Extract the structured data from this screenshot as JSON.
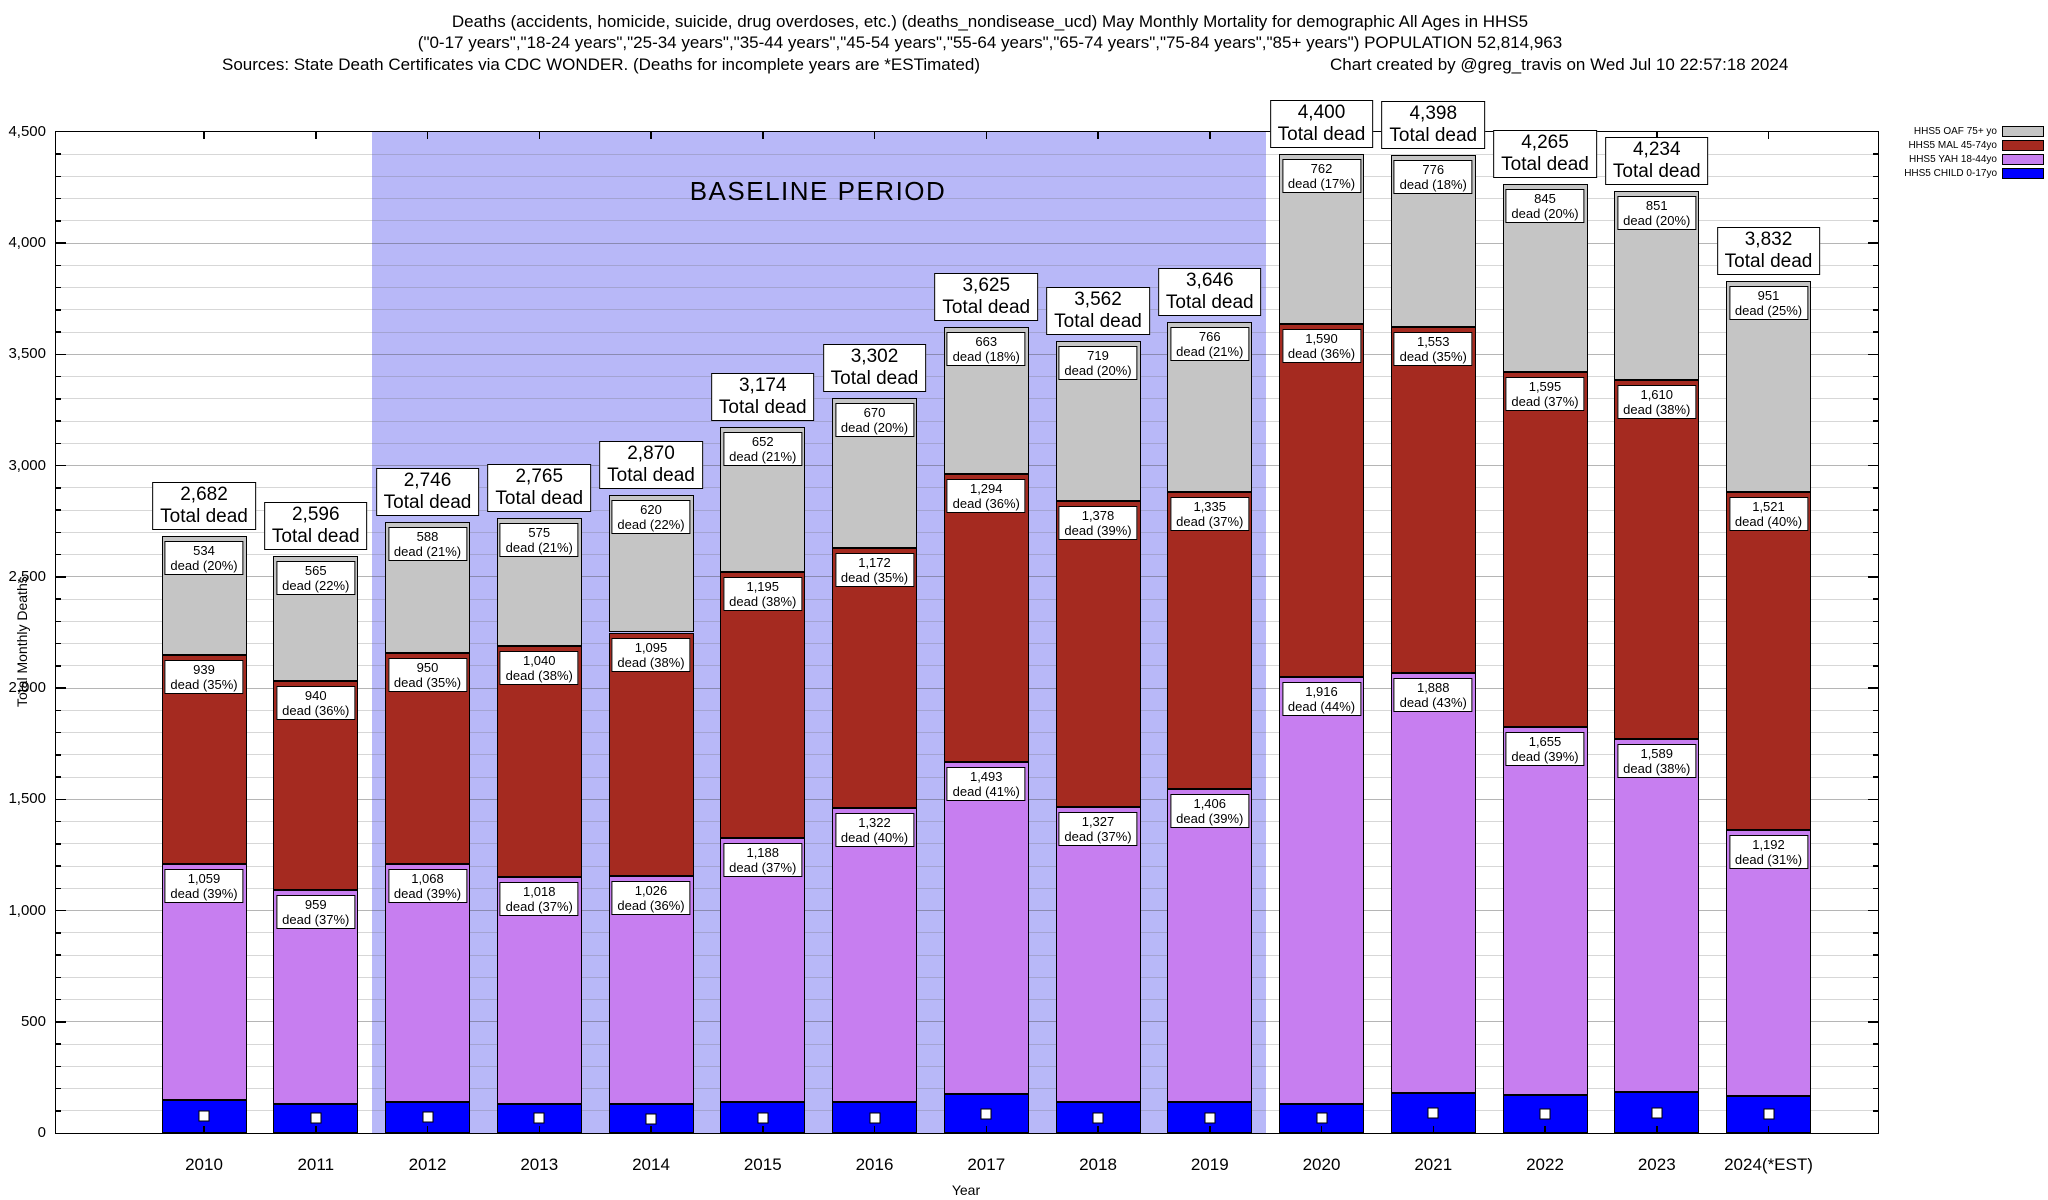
{
  "header": {
    "title_line1": "Deaths (accidents, homicide, suicide, drug overdoses, etc.) (deaths_nondisease_ucd) May Monthly Mortality for demographic All Ages in HHS5",
    "title_line2": "(\"0-17 years\",\"18-24 years\",\"25-34 years\",\"35-44 years\",\"45-54 years\",\"55-64 years\",\"65-74 years\",\"75-84 years\",\"85+ years\") POPULATION 52,814,963",
    "sources": "Sources: State Death Certificates via CDC WONDER. (Deaths for incomplete years are *ESTimated)",
    "credit": "Chart created by @greg_travis on Wed Jul 10 22:57:18 2024"
  },
  "chart_data": {
    "type": "bar",
    "stacked": true,
    "title": "Deaths (accidents, homicide, suicide, drug overdoses, etc.) May Monthly Mortality for demographic All Ages in HHS5",
    "xlabel": "Year",
    "ylabel": "Total Monthly Deaths",
    "ylim": [
      0,
      4500
    ],
    "y_tick_step": 500,
    "y_minor_step": 100,
    "grid": true,
    "legend_position": "top-right-outside",
    "categories": [
      "2010",
      "2011",
      "2012",
      "2013",
      "2014",
      "2015",
      "2016",
      "2017",
      "2018",
      "2019",
      "2020",
      "2021",
      "2022",
      "2023",
      "2024(*EST)"
    ],
    "totals": [
      2682,
      2596,
      2746,
      2765,
      2870,
      3174,
      3302,
      3625,
      3562,
      3646,
      4400,
      4398,
      4265,
      4234,
      3832
    ],
    "total_label_text": "Total dead",
    "segment_label_prefix": "dead",
    "series": [
      {
        "name": "HHS5 CHILD 0-17yo",
        "short": "child",
        "color": "#0000ff",
        "values": [
          150,
          132,
          140,
          132,
          129,
          139,
          138,
          175,
          138,
          139,
          132,
          181,
          170,
          184,
          168
        ],
        "values_estimated": true,
        "labels_visible": false,
        "marker": "white-square"
      },
      {
        "name": "HHS5 YAH 18-44yo",
        "short": "yah",
        "color": "#c77ef0",
        "values": [
          1059,
          959,
          1068,
          1018,
          1026,
          1188,
          1322,
          1493,
          1327,
          1406,
          1916,
          1888,
          1655,
          1589,
          1192
        ],
        "pct": [
          39,
          37,
          39,
          37,
          36,
          37,
          40,
          41,
          37,
          39,
          44,
          43,
          39,
          38,
          31
        ]
      },
      {
        "name": "HHS5 MAL 45-74yo",
        "short": "mal",
        "color": "#a52a20",
        "values": [
          939,
          940,
          950,
          1040,
          1095,
          1195,
          1172,
          1294,
          1378,
          1335,
          1590,
          1553,
          1595,
          1610,
          1521
        ],
        "pct": [
          35,
          36,
          35,
          38,
          38,
          38,
          35,
          36,
          39,
          37,
          36,
          35,
          37,
          38,
          40
        ]
      },
      {
        "name": "HHS5 OAF 75+ yo",
        "short": "oaf",
        "color": "#c5c5c5",
        "values": [
          534,
          565,
          588,
          575,
          620,
          652,
          670,
          663,
          719,
          766,
          762,
          776,
          845,
          851,
          951
        ],
        "pct": [
          20,
          22,
          21,
          21,
          22,
          21,
          20,
          18,
          20,
          21,
          17,
          18,
          20,
          20,
          25
        ]
      }
    ],
    "legend_order": [
      "HHS5 OAF 75+ yo",
      "HHS5 MAL 45-74yo",
      "HHS5 YAH 18-44yo",
      "HHS5 CHILD 0-17yo"
    ],
    "baseline": {
      "label": "BASELINE PERIOD",
      "from_category": "2012",
      "to_category": "2019",
      "band_color": "#b8b8f8"
    }
  }
}
